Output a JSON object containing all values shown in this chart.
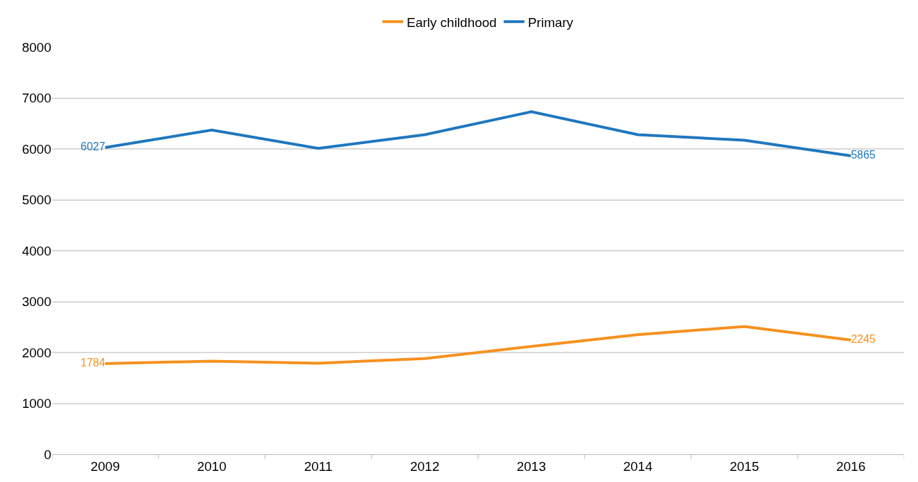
{
  "chart_data": {
    "type": "line",
    "categories": [
      "2009",
      "2010",
      "2011",
      "2012",
      "2013",
      "2014",
      "2015",
      "2016"
    ],
    "series": [
      {
        "name": "Early childhood",
        "color": "#f7901e",
        "values": [
          1784,
          1830,
          1790,
          1880,
          2120,
          2350,
          2510,
          2245
        ],
        "value_labels": [
          "1784",
          null,
          null,
          null,
          null,
          null,
          null,
          "2245"
        ]
      },
      {
        "name": "Primary",
        "color": "#1f77bf",
        "values": [
          6027,
          6370,
          6010,
          6280,
          6730,
          6280,
          6170,
          5865
        ],
        "value_labels": [
          "6027",
          null,
          null,
          null,
          null,
          null,
          null,
          "5865"
        ]
      }
    ],
    "ylim": [
      0,
      8000
    ],
    "yticks": [
      0,
      1000,
      2000,
      3000,
      4000,
      5000,
      6000,
      7000,
      8000
    ],
    "grid": "y",
    "legend": "top",
    "marker": "none",
    "line_style": "solid"
  }
}
